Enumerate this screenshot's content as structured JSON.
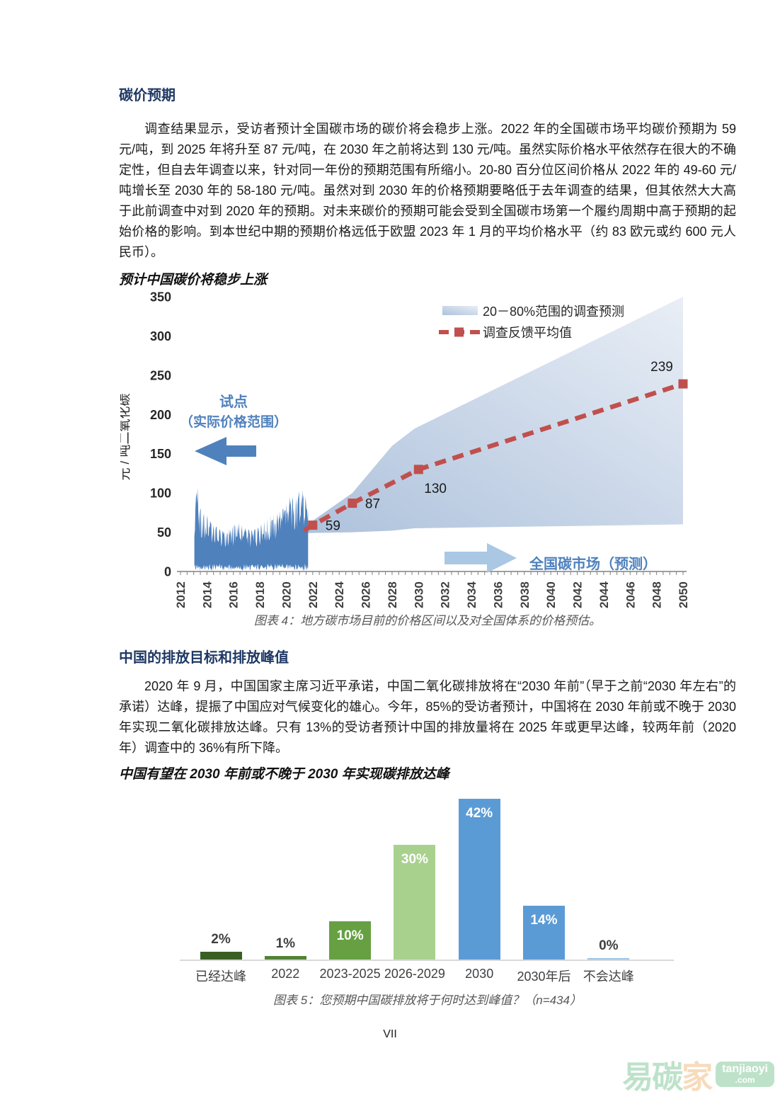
{
  "page_number": "VII",
  "section1": {
    "heading": "碳价预期",
    "paragraph": "调查结果显示，受访者预计全国碳市场的碳价将会稳步上涨。2022 年的全国碳市场平均碳价预期为 59 元/吨，到 2025 年将升至 87 元/吨，在 2030 年之前将达到 130 元/吨。虽然实际价格水平依然存在很大的不确定性，但自去年调查以来，针对同一年份的预期范围有所缩小。20-80 百分位区间价格从 2022 年的 49-60 元/吨增长至 2030 年的 58-180 元/吨。虽然对到 2030 年的价格预期要略低于去年调查的结果，但其依然大大高于此前调查中对到 2020 年的预期。对未来碳价的预期可能会受到全国碳市场第一个履约周期中高于预期的起始价格的影响。到本世纪中期的预期价格远低于欧盟 2023 年 1 月的平均价格水平（约 83 欧元或约 600 元人民币）。"
  },
  "section2": {
    "heading": "中国的排放目标和排放峰值",
    "paragraph": "2020 年 9 月，中国国家主席习近平承诺，中国二氧化碳排放将在“2030 年前”（早于之前“2030 年左右”的承诺）达峰，提振了中国应对气候变化的雄心。今年，85%的受访者预计，中国将在 2030 年前或不晚于 2030 年实现二氧化碳排放达峰。只有 13%的受访者预计中国的排放量将在 2025 年或更早达峰，较两年前（2020 年）调查中的 36%有所下降。"
  },
  "chart_data": [
    {
      "type": "area+line",
      "title": "预计中国碳价将稳步上涨",
      "caption": "图表 4：地方碳市场目前的价格区间以及对全国体系的价格预估。",
      "ylabel": "元 / 吨二氧化碳",
      "ylim": [
        0,
        350
      ],
      "yticks": [
        0,
        50,
        100,
        150,
        200,
        250,
        300,
        350
      ],
      "xlim": [
        2012,
        2050
      ],
      "xticks": [
        2012,
        2014,
        2016,
        2018,
        2020,
        2022,
        2024,
        2026,
        2028,
        2030,
        2032,
        2034,
        2036,
        2038,
        2040,
        2042,
        2044,
        2046,
        2048,
        2050
      ],
      "legend": [
        "20－80%范围的调查预测",
        "调查反馈平均值"
      ],
      "mean_series": {
        "name": "调查反馈平均值",
        "x": [
          2022,
          2025,
          2030,
          2050
        ],
        "values": [
          59,
          87,
          130,
          239
        ],
        "labels": [
          "59",
          "87",
          "130",
          "239"
        ],
        "color": "#c0504d"
      },
      "band": {
        "name": "20－80%范围的调查预测",
        "x": [
          2021.6,
          2025,
          2028,
          2029.7,
          2050
        ],
        "high": [
          60,
          100,
          160,
          182,
          350
        ],
        "low": [
          49,
          50,
          52,
          55,
          60
        ]
      },
      "pilot": {
        "name": "试点（实际价格范围）",
        "x_start": 2013.05,
        "x_end": 2021.65,
        "color": "#4f81bd",
        "envelope": [
          [
            2013.05,
            45
          ],
          [
            2013.18,
            127
          ],
          [
            2013.35,
            95
          ],
          [
            2013.6,
            75
          ],
          [
            2014,
            72
          ],
          [
            2014.4,
            60
          ],
          [
            2014.9,
            55
          ],
          [
            2015.4,
            50
          ],
          [
            2015.9,
            57
          ],
          [
            2016.4,
            62
          ],
          [
            2016.9,
            55
          ],
          [
            2017.4,
            52
          ],
          [
            2017.9,
            57
          ],
          [
            2018.4,
            65
          ],
          [
            2018.9,
            72
          ],
          [
            2019.4,
            75
          ],
          [
            2019.9,
            82
          ],
          [
            2020.3,
            97
          ],
          [
            2020.7,
            92
          ],
          [
            2021.1,
            107
          ],
          [
            2021.4,
            98
          ],
          [
            2021.65,
            88
          ]
        ]
      },
      "annotations": {
        "pilot_line1": "试点",
        "pilot_line2": "（实际价格范围）",
        "national": "全国碳市场（预测）"
      }
    },
    {
      "type": "bar",
      "title": "中国有望在 2030 年前或不晚于 2030 年实现碳排放达峰",
      "caption": "图表 5：您预期中国碳排放将于何时达到峰值？（n=434）",
      "categories": [
        "已经达峰",
        "2022",
        "2023-2025",
        "2026-2029",
        "2030",
        "2030年后",
        "不会达峰"
      ],
      "values": [
        2,
        1,
        10,
        30,
        42,
        14,
        0
      ],
      "labels": [
        "2%",
        "1%",
        "10%",
        "30%",
        "42%",
        "14%",
        "0%"
      ],
      "colors": [
        "#3b5e24",
        "#548235",
        "#66a043",
        "#a9d18e",
        "#5b9bd5",
        "#5b9bd5",
        "#9dc3e6"
      ],
      "label_inside": [
        false,
        false,
        true,
        true,
        true,
        true,
        false
      ],
      "ylim": [
        0,
        45
      ]
    }
  ],
  "watermark": {
    "text_green": "易碳",
    "text_orange": "家",
    "badge_line1": "tanjiaoyi",
    "badge_line2": ".com"
  }
}
